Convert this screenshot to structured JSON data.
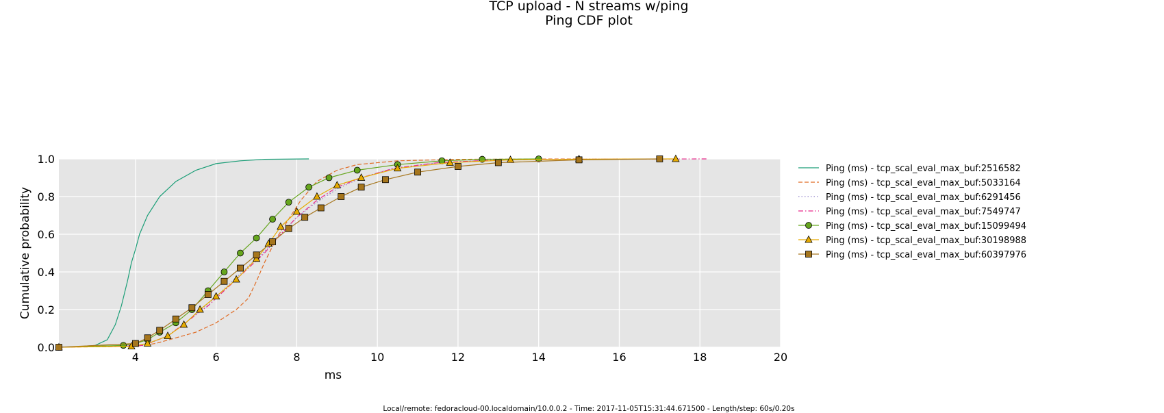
{
  "title_line1": "TCP upload - N streams w/ping",
  "title_line2": "Ping CDF plot",
  "footer": "Local/remote: fedoracloud-00.localdomain/10.0.0.2 - Time: 2017-11-05T15:31:44.671500 - Length/step: 60s/0.20s",
  "chart_data": {
    "type": "line",
    "title": "TCP upload - N streams w/ping\nPing CDF plot",
    "xlabel": "ms",
    "ylabel": "Cumulative probability",
    "xlim": [
      2.1,
      20
    ],
    "ylim": [
      0,
      1
    ],
    "xticks": [
      "4",
      "6",
      "8",
      "10",
      "12",
      "14",
      "16",
      "18",
      "20"
    ],
    "yticks": [
      "0.0",
      "0.2",
      "0.4",
      "0.6",
      "0.8",
      "1.0"
    ],
    "grid": true,
    "legend_position": "right, outside plot",
    "series": [
      {
        "name": "Ping (ms) - tcp_scal_eval_max_buf:2516582",
        "color": "#1b9e77",
        "dash": "solid",
        "marker": "none",
        "points": [
          [
            2.1,
            0
          ],
          [
            2.6,
            0.003
          ],
          [
            3.0,
            0.01
          ],
          [
            3.3,
            0.04
          ],
          [
            3.5,
            0.12
          ],
          [
            3.65,
            0.22
          ],
          [
            3.8,
            0.35
          ],
          [
            3.9,
            0.45
          ],
          [
            4.0,
            0.52
          ],
          [
            4.1,
            0.6
          ],
          [
            4.3,
            0.7
          ],
          [
            4.6,
            0.8
          ],
          [
            5.0,
            0.88
          ],
          [
            5.5,
            0.94
          ],
          [
            6.0,
            0.975
          ],
          [
            6.6,
            0.99
          ],
          [
            7.2,
            0.998
          ],
          [
            8.3,
            1.0
          ]
        ]
      },
      {
        "name": "Ping (ms) - tcp_scal_eval_max_buf:5033164",
        "color": "#e06c25",
        "dash": "dashed",
        "marker": "none",
        "points": [
          [
            2.1,
            0
          ],
          [
            4.0,
            0.005
          ],
          [
            4.5,
            0.02
          ],
          [
            5.0,
            0.05
          ],
          [
            5.5,
            0.08
          ],
          [
            6.0,
            0.13
          ],
          [
            6.5,
            0.2
          ],
          [
            6.8,
            0.26
          ],
          [
            7.0,
            0.35
          ],
          [
            7.2,
            0.45
          ],
          [
            7.5,
            0.58
          ],
          [
            7.8,
            0.68
          ],
          [
            8.1,
            0.78
          ],
          [
            8.5,
            0.88
          ],
          [
            9.0,
            0.94
          ],
          [
            9.5,
            0.97
          ],
          [
            10.5,
            0.99
          ],
          [
            12.0,
            0.998
          ],
          [
            15.0,
            1.0
          ]
        ]
      },
      {
        "name": "Ping (ms) - tcp_scal_eval_max_buf:6291456",
        "color": "#8f7fc8",
        "dash": "dotted",
        "marker": "none",
        "points": [
          [
            2.1,
            0
          ],
          [
            4.2,
            0.01
          ],
          [
            4.8,
            0.06
          ],
          [
            5.3,
            0.14
          ],
          [
            5.8,
            0.23
          ],
          [
            6.3,
            0.33
          ],
          [
            6.8,
            0.43
          ],
          [
            7.2,
            0.51
          ],
          [
            7.6,
            0.6
          ],
          [
            8.0,
            0.69
          ],
          [
            8.5,
            0.77
          ],
          [
            9.0,
            0.84
          ],
          [
            9.6,
            0.9
          ],
          [
            10.4,
            0.95
          ],
          [
            11.5,
            0.98
          ],
          [
            13.0,
            0.995
          ],
          [
            16.0,
            1.0
          ]
        ]
      },
      {
        "name": "Ping (ms) - tcp_scal_eval_max_buf:7549747",
        "color": "#e7298a",
        "dash": "dashdot",
        "marker": "none",
        "points": [
          [
            2.1,
            0
          ],
          [
            4.2,
            0.01
          ],
          [
            4.8,
            0.06
          ],
          [
            5.3,
            0.14
          ],
          [
            5.8,
            0.22
          ],
          [
            6.3,
            0.32
          ],
          [
            6.8,
            0.42
          ],
          [
            7.2,
            0.5
          ],
          [
            7.6,
            0.6
          ],
          [
            8.0,
            0.69
          ],
          [
            8.5,
            0.78
          ],
          [
            9.0,
            0.85
          ],
          [
            9.6,
            0.9
          ],
          [
            10.4,
            0.95
          ],
          [
            11.5,
            0.98
          ],
          [
            13.0,
            0.995
          ],
          [
            15.5,
            0.999
          ],
          [
            18.2,
            1.0
          ]
        ]
      },
      {
        "name": "Ping (ms) - tcp_scal_eval_max_buf:15099494",
        "color": "#66a61e",
        "dash": "solid",
        "marker": "circle",
        "points": [
          [
            2.1,
            0
          ],
          [
            3.7,
            0.01
          ],
          [
            4.0,
            0.02
          ],
          [
            4.3,
            0.04
          ],
          [
            4.6,
            0.08
          ],
          [
            5.0,
            0.13
          ],
          [
            5.4,
            0.2
          ],
          [
            5.8,
            0.3
          ],
          [
            6.2,
            0.4
          ],
          [
            6.6,
            0.5
          ],
          [
            7.0,
            0.58
          ],
          [
            7.4,
            0.68
          ],
          [
            7.8,
            0.77
          ],
          [
            8.3,
            0.85
          ],
          [
            8.8,
            0.9
          ],
          [
            9.5,
            0.94
          ],
          [
            10.5,
            0.97
          ],
          [
            11.6,
            0.99
          ],
          [
            12.6,
            0.998
          ],
          [
            14.0,
            1.0
          ]
        ]
      },
      {
        "name": "Ping (ms) - tcp_scal_eval_max_buf:30198988",
        "color": "#e6ab02",
        "dash": "solid",
        "marker": "triangle",
        "points": [
          [
            2.1,
            0
          ],
          [
            3.9,
            0.005
          ],
          [
            4.3,
            0.02
          ],
          [
            4.8,
            0.06
          ],
          [
            5.2,
            0.12
          ],
          [
            5.6,
            0.2
          ],
          [
            6.0,
            0.27
          ],
          [
            6.5,
            0.36
          ],
          [
            7.0,
            0.47
          ],
          [
            7.3,
            0.55
          ],
          [
            7.6,
            0.64
          ],
          [
            8.0,
            0.72
          ],
          [
            8.5,
            0.8
          ],
          [
            9.0,
            0.86
          ],
          [
            9.6,
            0.9
          ],
          [
            10.5,
            0.95
          ],
          [
            11.8,
            0.98
          ],
          [
            13.3,
            0.995
          ],
          [
            15.0,
            0.999
          ],
          [
            17.4,
            1.0
          ]
        ]
      },
      {
        "name": "Ping (ms) - tcp_scal_eval_max_buf:60397976",
        "color": "#a6761d",
        "dash": "solid",
        "marker": "square",
        "points": [
          [
            2.1,
            0
          ],
          [
            4.0,
            0.02
          ],
          [
            4.3,
            0.05
          ],
          [
            4.6,
            0.09
          ],
          [
            5.0,
            0.15
          ],
          [
            5.4,
            0.21
          ],
          [
            5.8,
            0.28
          ],
          [
            6.2,
            0.35
          ],
          [
            6.6,
            0.42
          ],
          [
            7.0,
            0.49
          ],
          [
            7.4,
            0.56
          ],
          [
            7.8,
            0.63
          ],
          [
            8.2,
            0.69
          ],
          [
            8.6,
            0.74
          ],
          [
            9.1,
            0.8
          ],
          [
            9.6,
            0.85
          ],
          [
            10.2,
            0.89
          ],
          [
            11.0,
            0.93
          ],
          [
            12.0,
            0.96
          ],
          [
            13.0,
            0.98
          ],
          [
            15.0,
            0.995
          ],
          [
            17.0,
            1.0
          ]
        ]
      }
    ]
  }
}
